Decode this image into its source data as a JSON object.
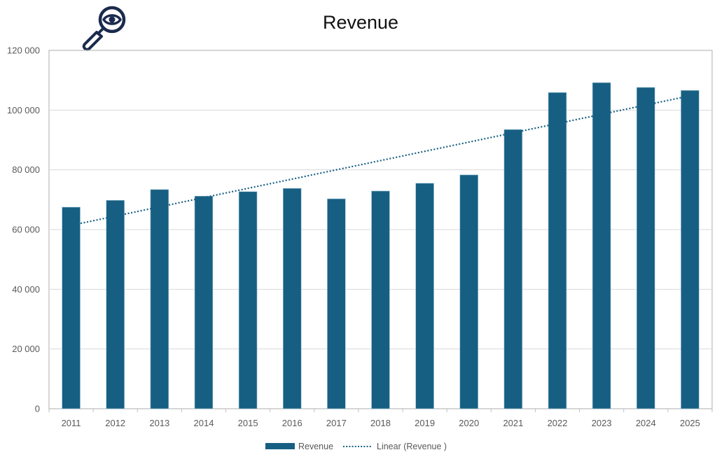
{
  "chart_data": {
    "type": "bar",
    "title": "Revenue",
    "xlabel": "",
    "ylabel": "",
    "categories": [
      "2011",
      "2012",
      "2013",
      "2014",
      "2015",
      "2016",
      "2017",
      "2018",
      "2019",
      "2020",
      "2021",
      "2022",
      "2023",
      "2024",
      "2025"
    ],
    "series": [
      {
        "name": "Revenue",
        "type": "bar",
        "color": "#175F82",
        "values": [
          67500,
          69800,
          73400,
          71200,
          72700,
          73800,
          70300,
          72900,
          75500,
          78300,
          93500,
          105900,
          109200,
          107600,
          106600
        ]
      },
      {
        "name": "Linear (Revenue )",
        "type": "trendline-linear",
        "style": "dotted",
        "color": "#175F82",
        "start_value": 61400,
        "end_value": 104800
      }
    ],
    "ylim": [
      0,
      120000
    ],
    "yticks": [
      0,
      20000,
      40000,
      60000,
      80000,
      100000,
      120000
    ],
    "ytick_labels": [
      "0",
      "20 000",
      "40 000",
      "60 000",
      "80 000",
      "100 000",
      "120 000"
    ],
    "grid": true,
    "legend": {
      "position": "bottom",
      "entries": [
        "Revenue",
        "Linear (Revenue )"
      ]
    }
  },
  "decoration": {
    "icon": "magnifier-eye-icon",
    "icon_color": "#1B2A4E"
  },
  "colors": {
    "bar": "#175F82",
    "grid": "#D9D9D9",
    "axis": "#BFBFBF",
    "text": "#595959"
  }
}
